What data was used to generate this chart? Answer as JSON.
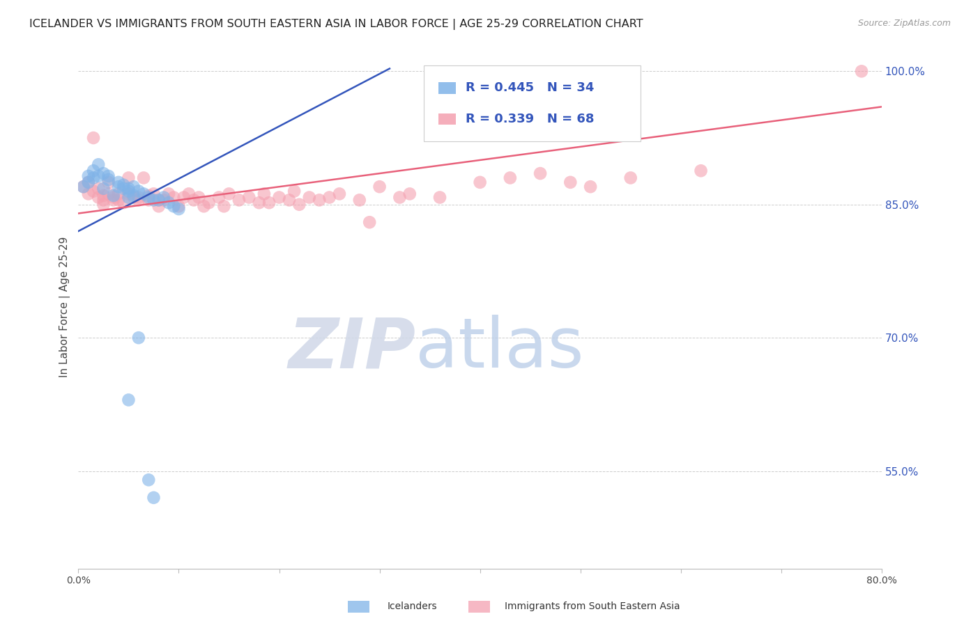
{
  "title": "ICELANDER VS IMMIGRANTS FROM SOUTH EASTERN ASIA IN LABOR FORCE | AGE 25-29 CORRELATION CHART",
  "source": "Source: ZipAtlas.com",
  "ylabel": "In Labor Force | Age 25-29",
  "x_min": 0.0,
  "x_max": 0.8,
  "y_min": 0.44,
  "y_max": 1.03,
  "x_ticks": [
    0.0,
    0.1,
    0.2,
    0.3,
    0.4,
    0.5,
    0.6,
    0.7,
    0.8
  ],
  "x_tick_labels": [
    "0.0%",
    "",
    "",
    "",
    "",
    "",
    "",
    "",
    "80.0%"
  ],
  "y_tick_positions": [
    0.55,
    0.7,
    0.85,
    1.0
  ],
  "y_tick_labels": [
    "55.0%",
    "70.0%",
    "85.0%",
    "100.0%"
  ],
  "blue_color": "#7FB3E8",
  "pink_color": "#F4A0B0",
  "blue_line_color": "#3355BB",
  "pink_line_color": "#E8607A",
  "blue_R": 0.445,
  "blue_N": 34,
  "pink_R": 0.339,
  "pink_N": 68,
  "legend_color": "#3355BB",
  "blue_points_x": [
    0.005,
    0.01,
    0.01,
    0.015,
    0.015,
    0.02,
    0.02,
    0.025,
    0.025,
    0.03,
    0.03,
    0.035,
    0.04,
    0.04,
    0.045,
    0.045,
    0.05,
    0.05,
    0.05,
    0.055,
    0.055,
    0.06,
    0.065,
    0.07,
    0.075,
    0.08,
    0.085,
    0.09,
    0.095,
    0.1,
    0.05,
    0.06,
    0.07,
    0.075
  ],
  "blue_points_y": [
    0.87,
    0.875,
    0.882,
    0.88,
    0.888,
    0.882,
    0.895,
    0.885,
    0.868,
    0.882,
    0.878,
    0.86,
    0.87,
    0.875,
    0.868,
    0.872,
    0.868,
    0.865,
    0.858,
    0.86,
    0.87,
    0.865,
    0.862,
    0.858,
    0.855,
    0.855,
    0.858,
    0.852,
    0.848,
    0.845,
    0.63,
    0.7,
    0.54,
    0.52
  ],
  "blue_line_x0": 0.0,
  "blue_line_y0": 0.82,
  "blue_line_x1": 0.31,
  "blue_line_y1": 1.003,
  "pink_line_x0": 0.0,
  "pink_line_y0": 0.84,
  "pink_line_x1": 0.8,
  "pink_line_y1": 0.96,
  "pink_points_x": [
    0.005,
    0.01,
    0.01,
    0.015,
    0.015,
    0.02,
    0.02,
    0.025,
    0.025,
    0.025,
    0.03,
    0.03,
    0.035,
    0.035,
    0.04,
    0.04,
    0.045,
    0.05,
    0.05,
    0.055,
    0.06,
    0.06,
    0.065,
    0.07,
    0.07,
    0.075,
    0.08,
    0.08,
    0.085,
    0.09,
    0.095,
    0.1,
    0.105,
    0.11,
    0.115,
    0.12,
    0.125,
    0.13,
    0.14,
    0.145,
    0.15,
    0.16,
    0.17,
    0.18,
    0.185,
    0.19,
    0.2,
    0.21,
    0.215,
    0.22,
    0.23,
    0.24,
    0.25,
    0.26,
    0.28,
    0.29,
    0.3,
    0.32,
    0.33,
    0.36,
    0.4,
    0.43,
    0.46,
    0.49,
    0.51,
    0.55,
    0.62,
    0.78
  ],
  "pink_points_y": [
    0.87,
    0.875,
    0.862,
    0.925,
    0.865,
    0.858,
    0.868,
    0.86,
    0.855,
    0.85,
    0.875,
    0.862,
    0.858,
    0.855,
    0.862,
    0.855,
    0.852,
    0.88,
    0.862,
    0.858,
    0.858,
    0.855,
    0.88,
    0.86,
    0.855,
    0.862,
    0.855,
    0.848,
    0.855,
    0.862,
    0.858,
    0.848,
    0.858,
    0.862,
    0.855,
    0.858,
    0.848,
    0.852,
    0.858,
    0.848,
    0.862,
    0.855,
    0.858,
    0.852,
    0.862,
    0.852,
    0.858,
    0.855,
    0.865,
    0.85,
    0.858,
    0.855,
    0.858,
    0.862,
    0.855,
    0.83,
    0.87,
    0.858,
    0.862,
    0.858,
    0.875,
    0.88,
    0.885,
    0.875,
    0.87,
    0.88,
    0.888,
    1.0
  ],
  "watermark_zip": "ZIP",
  "watermark_atlas": "atlas",
  "background_color": "#FFFFFF",
  "grid_color": "#CCCCCC"
}
